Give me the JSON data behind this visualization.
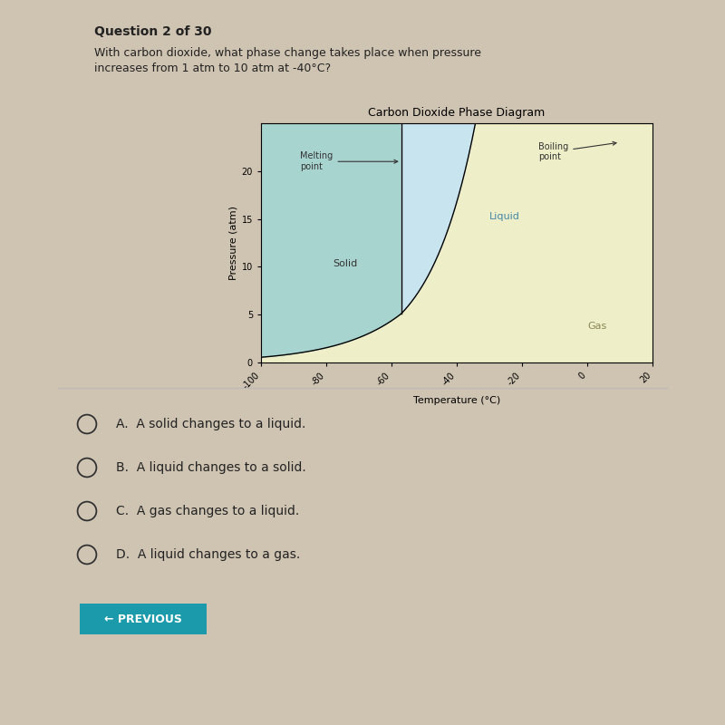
{
  "title": "Carbon Dioxide Phase Diagram",
  "xlabel": "Temperature (°C)",
  "ylabel": "Pressure (atm)",
  "xlim": [
    -100,
    20
  ],
  "ylim": [
    0,
    25
  ],
  "xticks": [
    -100,
    -80,
    -60,
    -40,
    -20,
    0,
    20
  ],
  "yticks": [
    0,
    5,
    10,
    15,
    20
  ],
  "solid_color": "#a8d4d0",
  "liquid_color": "#c8e4ee",
  "gas_color": "#eeeec8",
  "triple_point_T": -57,
  "triple_point_P": 5.1,
  "bg_color": "#cfc3b2",
  "chart_bg": "#e8e0d4",
  "question_text": "Question 2 of 30",
  "question_body": "With carbon dioxide, what phase change takes place when pressure\nincreases from 1 atm to 10 atm at -40°C?",
  "options": [
    "A.  A solid changes to a liquid.",
    "B.  A liquid changes to a solid.",
    "C.  A gas changes to a liquid.",
    "D.  A liquid changes to a gas."
  ],
  "button_text": "← PREVIOUS",
  "button_color": "#1a9aaa",
  "separator_color": "#bbbbbb"
}
